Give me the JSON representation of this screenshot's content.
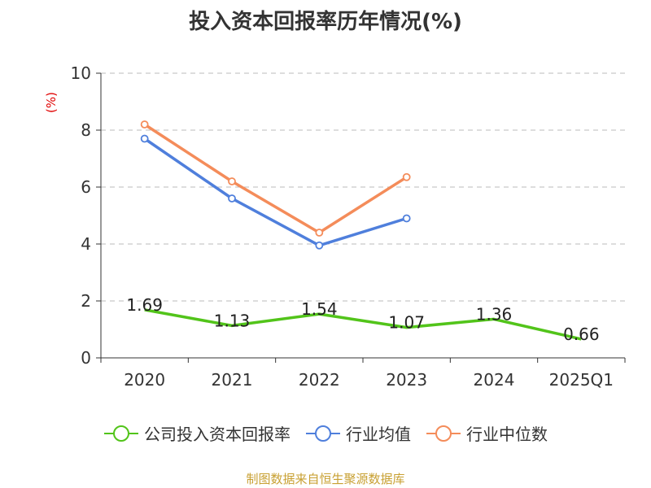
{
  "title": "投入资本回报率历年情况(%)",
  "source_note": "制图数据来自恒生聚源数据库",
  "chart_data": {
    "type": "line",
    "categories": [
      "2020",
      "2021",
      "2022",
      "2023",
      "2024",
      "2025Q1"
    ],
    "ylim": [
      0,
      10
    ],
    "yticks": [
      0,
      2,
      4,
      6,
      8,
      10
    ],
    "ylabel": "(%)",
    "xlabel": "",
    "grid": true,
    "legend_position": "bottom",
    "series": [
      {
        "name": "公司投入资本回报率",
        "color": "#52c41a",
        "values": [
          1.69,
          1.13,
          1.54,
          1.07,
          1.36,
          0.66
        ],
        "labels": [
          "1.69",
          "1.13",
          "1.54",
          "1.07",
          "1.36",
          "0.66"
        ],
        "markers": false
      },
      {
        "name": "行业均值",
        "color": "#4f7fdc",
        "values": [
          7.7,
          5.6,
          3.95,
          4.9,
          null,
          null
        ],
        "markers": true
      },
      {
        "name": "行业中位数",
        "color": "#f48c5a",
        "values": [
          8.2,
          6.2,
          4.4,
          6.35,
          null,
          null
        ],
        "markers": true
      }
    ]
  }
}
